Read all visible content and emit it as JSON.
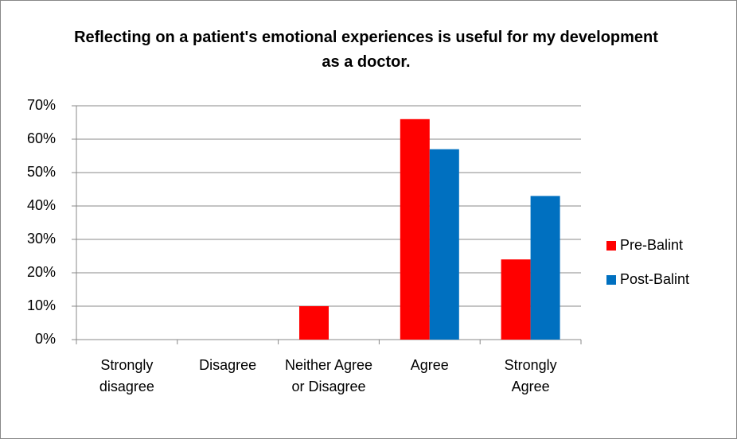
{
  "chart_data": {
    "type": "bar",
    "title": "Reflecting on a patient's emotional experiences is useful for my development as a doctor.",
    "categories": [
      "Strongly disagree",
      "Disagree",
      "Neither Agree or Disagree",
      "Agree",
      "Strongly Agree"
    ],
    "series": [
      {
        "name": "Pre-Balint",
        "color": "#ff0000",
        "values": [
          0,
          0,
          10,
          66,
          24
        ]
      },
      {
        "name": "Post-Balint",
        "color": "#0070c0",
        "values": [
          0,
          0,
          0,
          57,
          43
        ]
      }
    ],
    "ylim": [
      0,
      70
    ],
    "yticks": [
      {
        "value": 0,
        "label": "0%"
      },
      {
        "value": 10,
        "label": "10%"
      },
      {
        "value": 20,
        "label": "20%"
      },
      {
        "value": 30,
        "label": "30%"
      },
      {
        "value": 40,
        "label": "40%"
      },
      {
        "value": 50,
        "label": "50%"
      },
      {
        "value": 60,
        "label": "60%"
      },
      {
        "value": 70,
        "label": "70%"
      }
    ],
    "grid": true,
    "legend": "right"
  }
}
